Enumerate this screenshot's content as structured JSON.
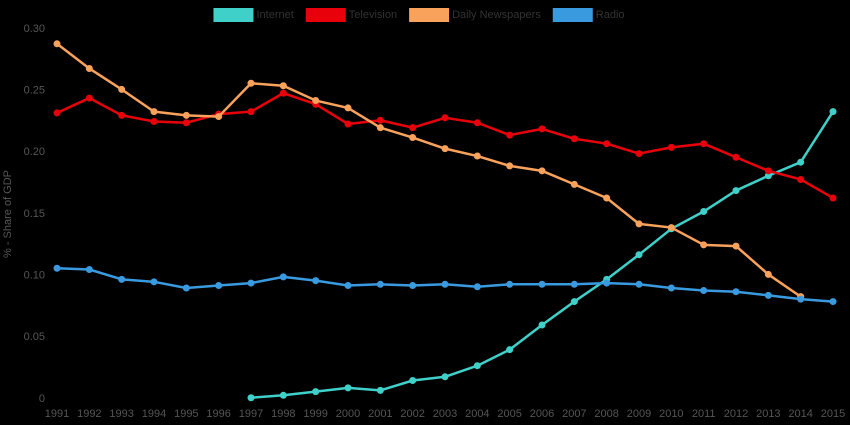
{
  "chart_data": {
    "type": "line",
    "y_label": "% - Share of GDP",
    "categories": [
      "1991",
      "1992",
      "1993",
      "1994",
      "1995",
      "1996",
      "1997",
      "1998",
      "1999",
      "2000",
      "2001",
      "2002",
      "2003",
      "2004",
      "2005",
      "2006",
      "2007",
      "2008",
      "2009",
      "2010",
      "2011",
      "2012",
      "2013",
      "2014",
      "2015"
    ],
    "series": [
      {
        "name": "Internet",
        "color": "#3fd0c9",
        "values": [
          null,
          null,
          null,
          null,
          null,
          null,
          0.001,
          0.003,
          0.006,
          0.009,
          0.007,
          0.015,
          0.018,
          0.027,
          0.04,
          0.06,
          0.079,
          0.097,
          0.117,
          0.138,
          0.152,
          0.169,
          0.181,
          0.192,
          0.233
        ]
      },
      {
        "name": "Television",
        "color": "#e8000b",
        "values": [
          0.232,
          0.244,
          0.23,
          0.225,
          0.224,
          0.231,
          0.233,
          0.248,
          0.239,
          0.223,
          0.226,
          0.22,
          0.228,
          0.224,
          0.214,
          0.219,
          0.211,
          0.207,
          0.199,
          0.204,
          0.207,
          0.196,
          0.185,
          0.178,
          0.163
        ]
      },
      {
        "name": "Daily Newspapers",
        "color": "#f9a25c",
        "values": [
          0.288,
          0.268,
          0.251,
          0.233,
          0.23,
          0.229,
          0.256,
          0.254,
          0.242,
          0.236,
          0.22,
          0.212,
          0.203,
          0.197,
          0.189,
          0.185,
          0.174,
          0.163,
          0.142,
          0.139,
          0.125,
          0.124,
          0.101,
          0.083,
          null
        ]
      },
      {
        "name": "Radio",
        "color": "#3a9ae0",
        "values": [
          0.106,
          0.105,
          0.097,
          0.095,
          0.09,
          0.092,
          0.094,
          0.099,
          0.096,
          0.092,
          0.093,
          0.092,
          0.093,
          0.091,
          0.093,
          0.093,
          0.093,
          0.094,
          0.093,
          0.09,
          0.088,
          0.087,
          0.084,
          0.081,
          0.079
        ]
      }
    ],
    "ylim": [
      0,
      0.3
    ],
    "yticks": [
      0,
      0.05,
      {
        "value": 0.1,
        "label": "0.10"
      },
      0.15,
      {
        "value": 0.2,
        "label": "0.20"
      },
      0.25,
      {
        "value": 0.3,
        "label": "0.30"
      }
    ],
    "legend": "top"
  }
}
